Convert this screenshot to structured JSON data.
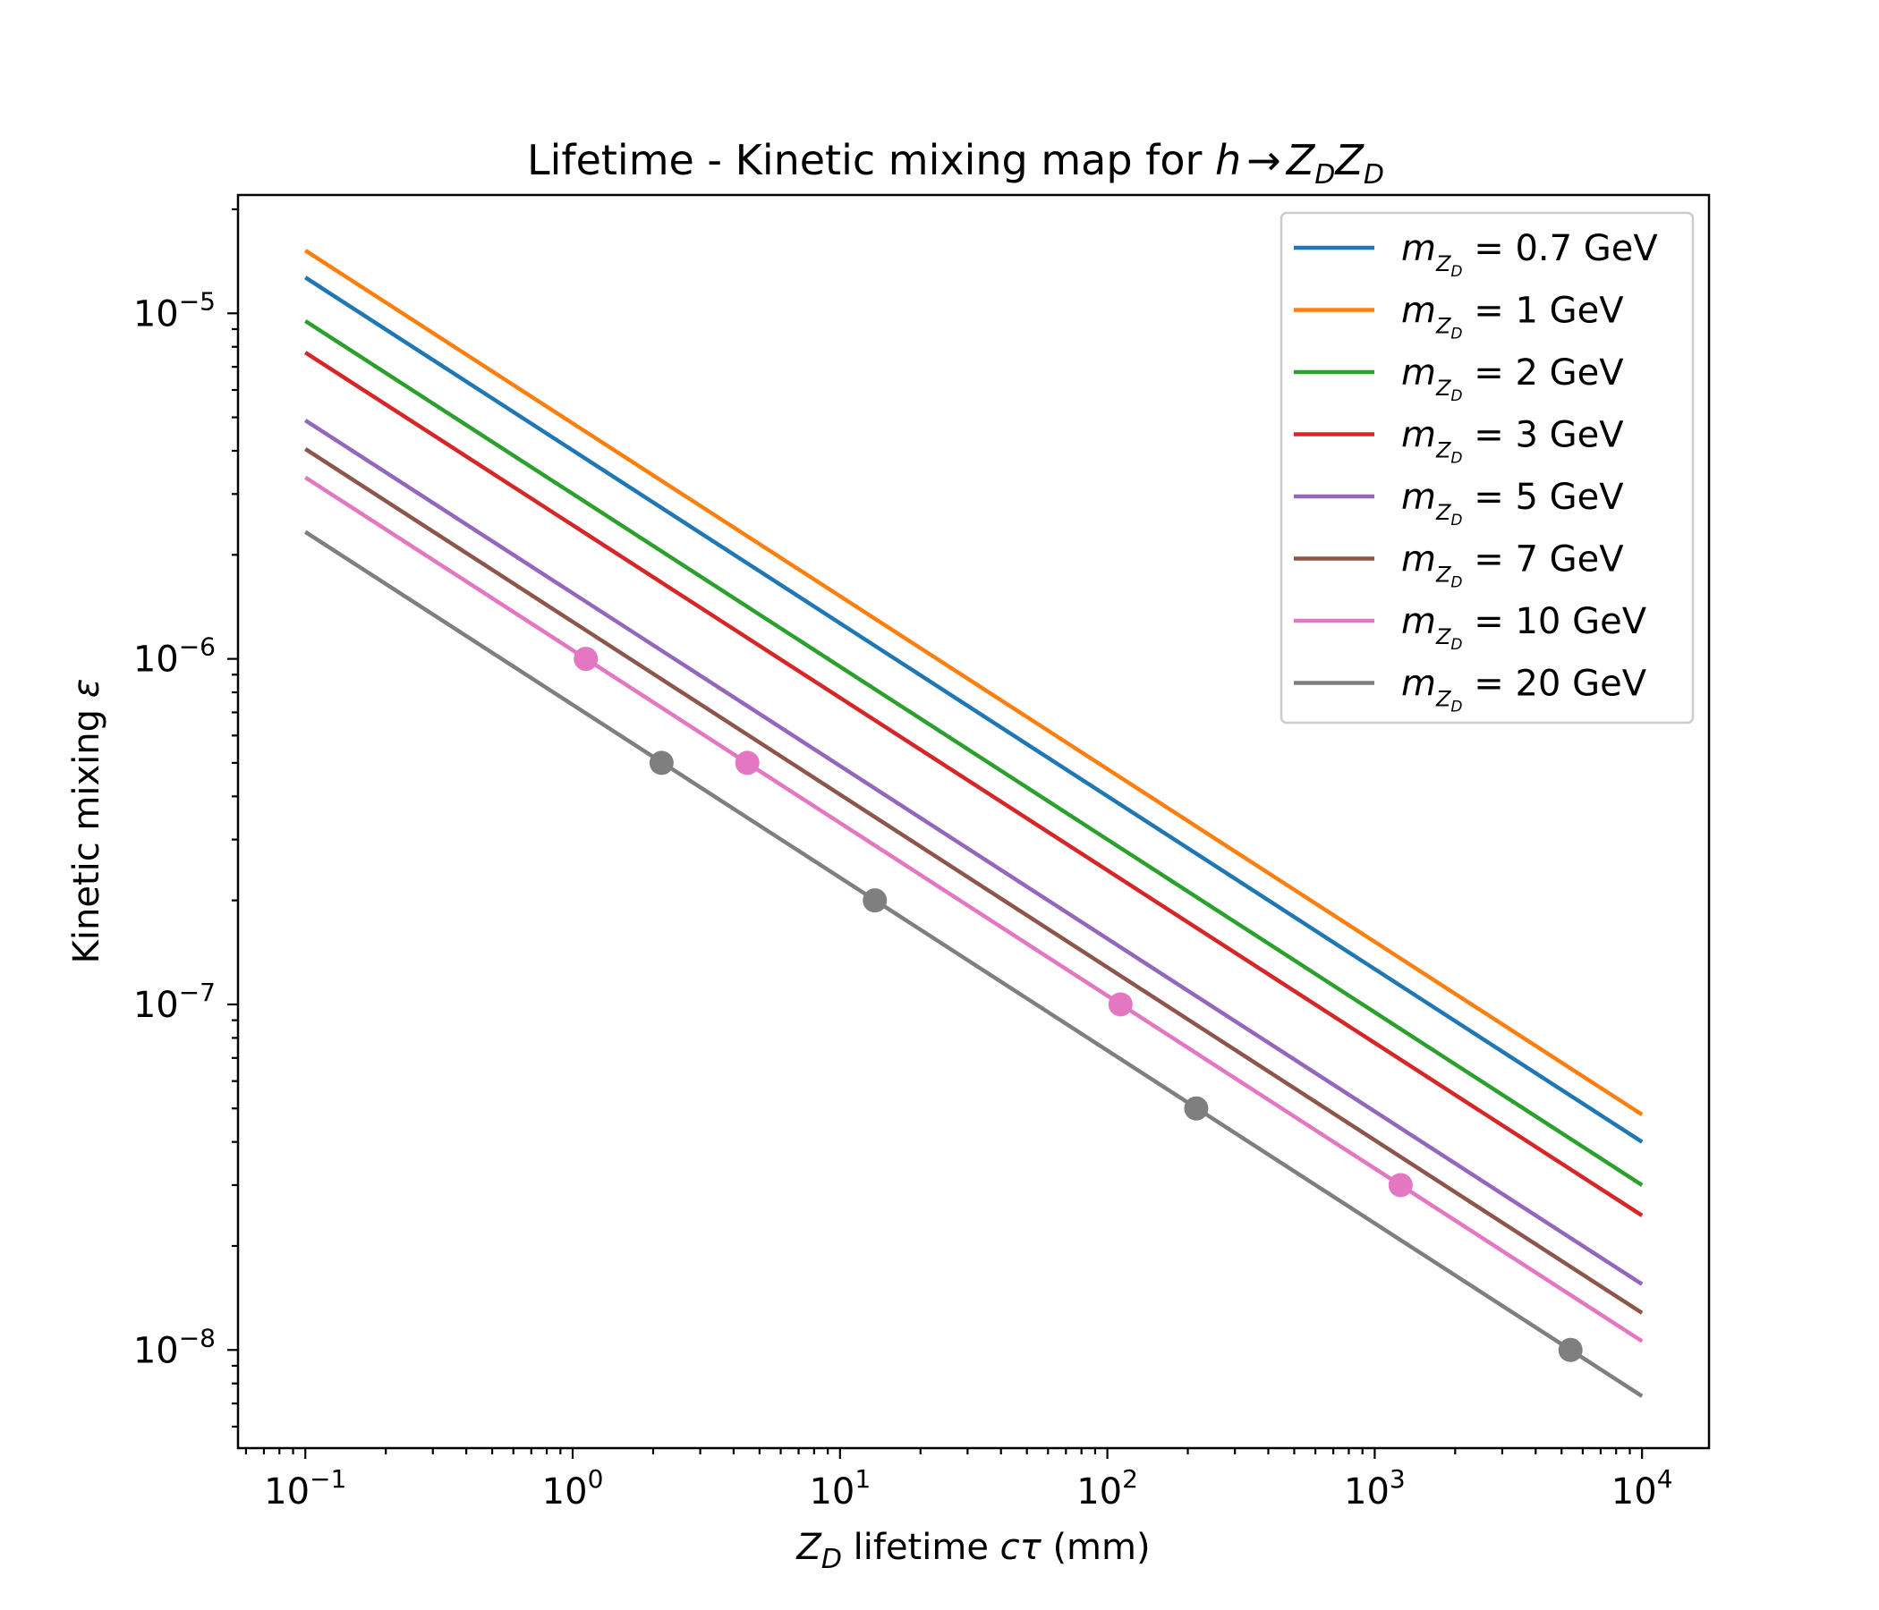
{
  "chart_data": {
    "type": "line",
    "title_parts": {
      "text": "Lifetime - Kinetic mixing map for ",
      "math": {
        "h": "h",
        "arrow": "→",
        "z": "Z",
        "sub": "D"
      }
    },
    "xlabel_parts": {
      "z": "Z",
      "sub": "D",
      "mid": " lifetime ",
      "ctau_c": "c",
      "ctau_tau": "τ",
      "unit": " (mm)"
    },
    "ylabel_parts": {
      "text": "Kinetic mixing ",
      "eps": "ε"
    },
    "xscale": "log",
    "yscale": "log",
    "xlim": [
      0.056,
      17800
    ],
    "ylim": [
      5.2e-09,
      2.2e-05
    ],
    "x_ticks": [
      {
        "value": 0.1,
        "base": "10",
        "exp": "−1"
      },
      {
        "value": 1,
        "base": "10",
        "exp": "0"
      },
      {
        "value": 10,
        "base": "10",
        "exp": "1"
      },
      {
        "value": 100,
        "base": "10",
        "exp": "2"
      },
      {
        "value": 1000,
        "base": "10",
        "exp": "3"
      },
      {
        "value": 10000,
        "base": "10",
        "exp": "4"
      }
    ],
    "y_ticks": [
      {
        "value": 1e-05,
        "base": "10",
        "exp": "−5"
      },
      {
        "value": 1e-06,
        "base": "10",
        "exp": "−6"
      },
      {
        "value": 1e-07,
        "base": "10",
        "exp": "−7"
      },
      {
        "value": 1e-08,
        "base": "10",
        "exp": "−8"
      }
    ],
    "grid": false,
    "legend": {
      "position": "top-right",
      "label_m": "m",
      "label_sub_z": "Z",
      "label_sub_d": "D",
      "label_eq": " =  "
    },
    "x": [
      0.1,
      10000
    ],
    "series": [
      {
        "name": "0.7 GeV",
        "color": "#1f77b4",
        "y": [
          1.27e-05,
          4e-08
        ]
      },
      {
        "name": "1 GeV",
        "color": "#ff7f0e",
        "y": [
          1.52e-05,
          4.8e-08
        ]
      },
      {
        "name": "2 GeV",
        "color": "#2ca02c",
        "y": [
          9.5e-06,
          3e-08
        ]
      },
      {
        "name": "3 GeV",
        "color": "#d62728",
        "y": [
          7.7e-06,
          2.45e-08
        ]
      },
      {
        "name": "5 GeV",
        "color": "#9467bd",
        "y": [
          4.9e-06,
          1.55e-08
        ]
      },
      {
        "name": "7 GeV",
        "color": "#8c564b",
        "y": [
          4.05e-06,
          1.28e-08
        ]
      },
      {
        "name": "10 GeV",
        "color": "#e377c2",
        "y": [
          3.35e-06,
          1.06e-08
        ]
      },
      {
        "name": "20 GeV",
        "color": "#7f7f7f",
        "y": [
          2.33e-06,
          7.35e-09
        ]
      }
    ],
    "markers": [
      {
        "series": "10 GeV",
        "color": "#e377c2",
        "x": 1.12,
        "y": 1e-06
      },
      {
        "series": "10 GeV",
        "color": "#e377c2",
        "x": 4.5,
        "y": 5e-07
      },
      {
        "series": "10 GeV",
        "color": "#e377c2",
        "x": 112,
        "y": 1e-07
      },
      {
        "series": "10 GeV",
        "color": "#e377c2",
        "x": 1250,
        "y": 3e-08
      },
      {
        "series": "20 GeV",
        "color": "#7f7f7f",
        "x": 2.15,
        "y": 5e-07
      },
      {
        "series": "20 GeV",
        "color": "#7f7f7f",
        "x": 13.5,
        "y": 2e-07
      },
      {
        "series": "20 GeV",
        "color": "#7f7f7f",
        "x": 215,
        "y": 5e-08
      },
      {
        "series": "20 GeV",
        "color": "#7f7f7f",
        "x": 5400,
        "y": 1e-08
      }
    ]
  }
}
